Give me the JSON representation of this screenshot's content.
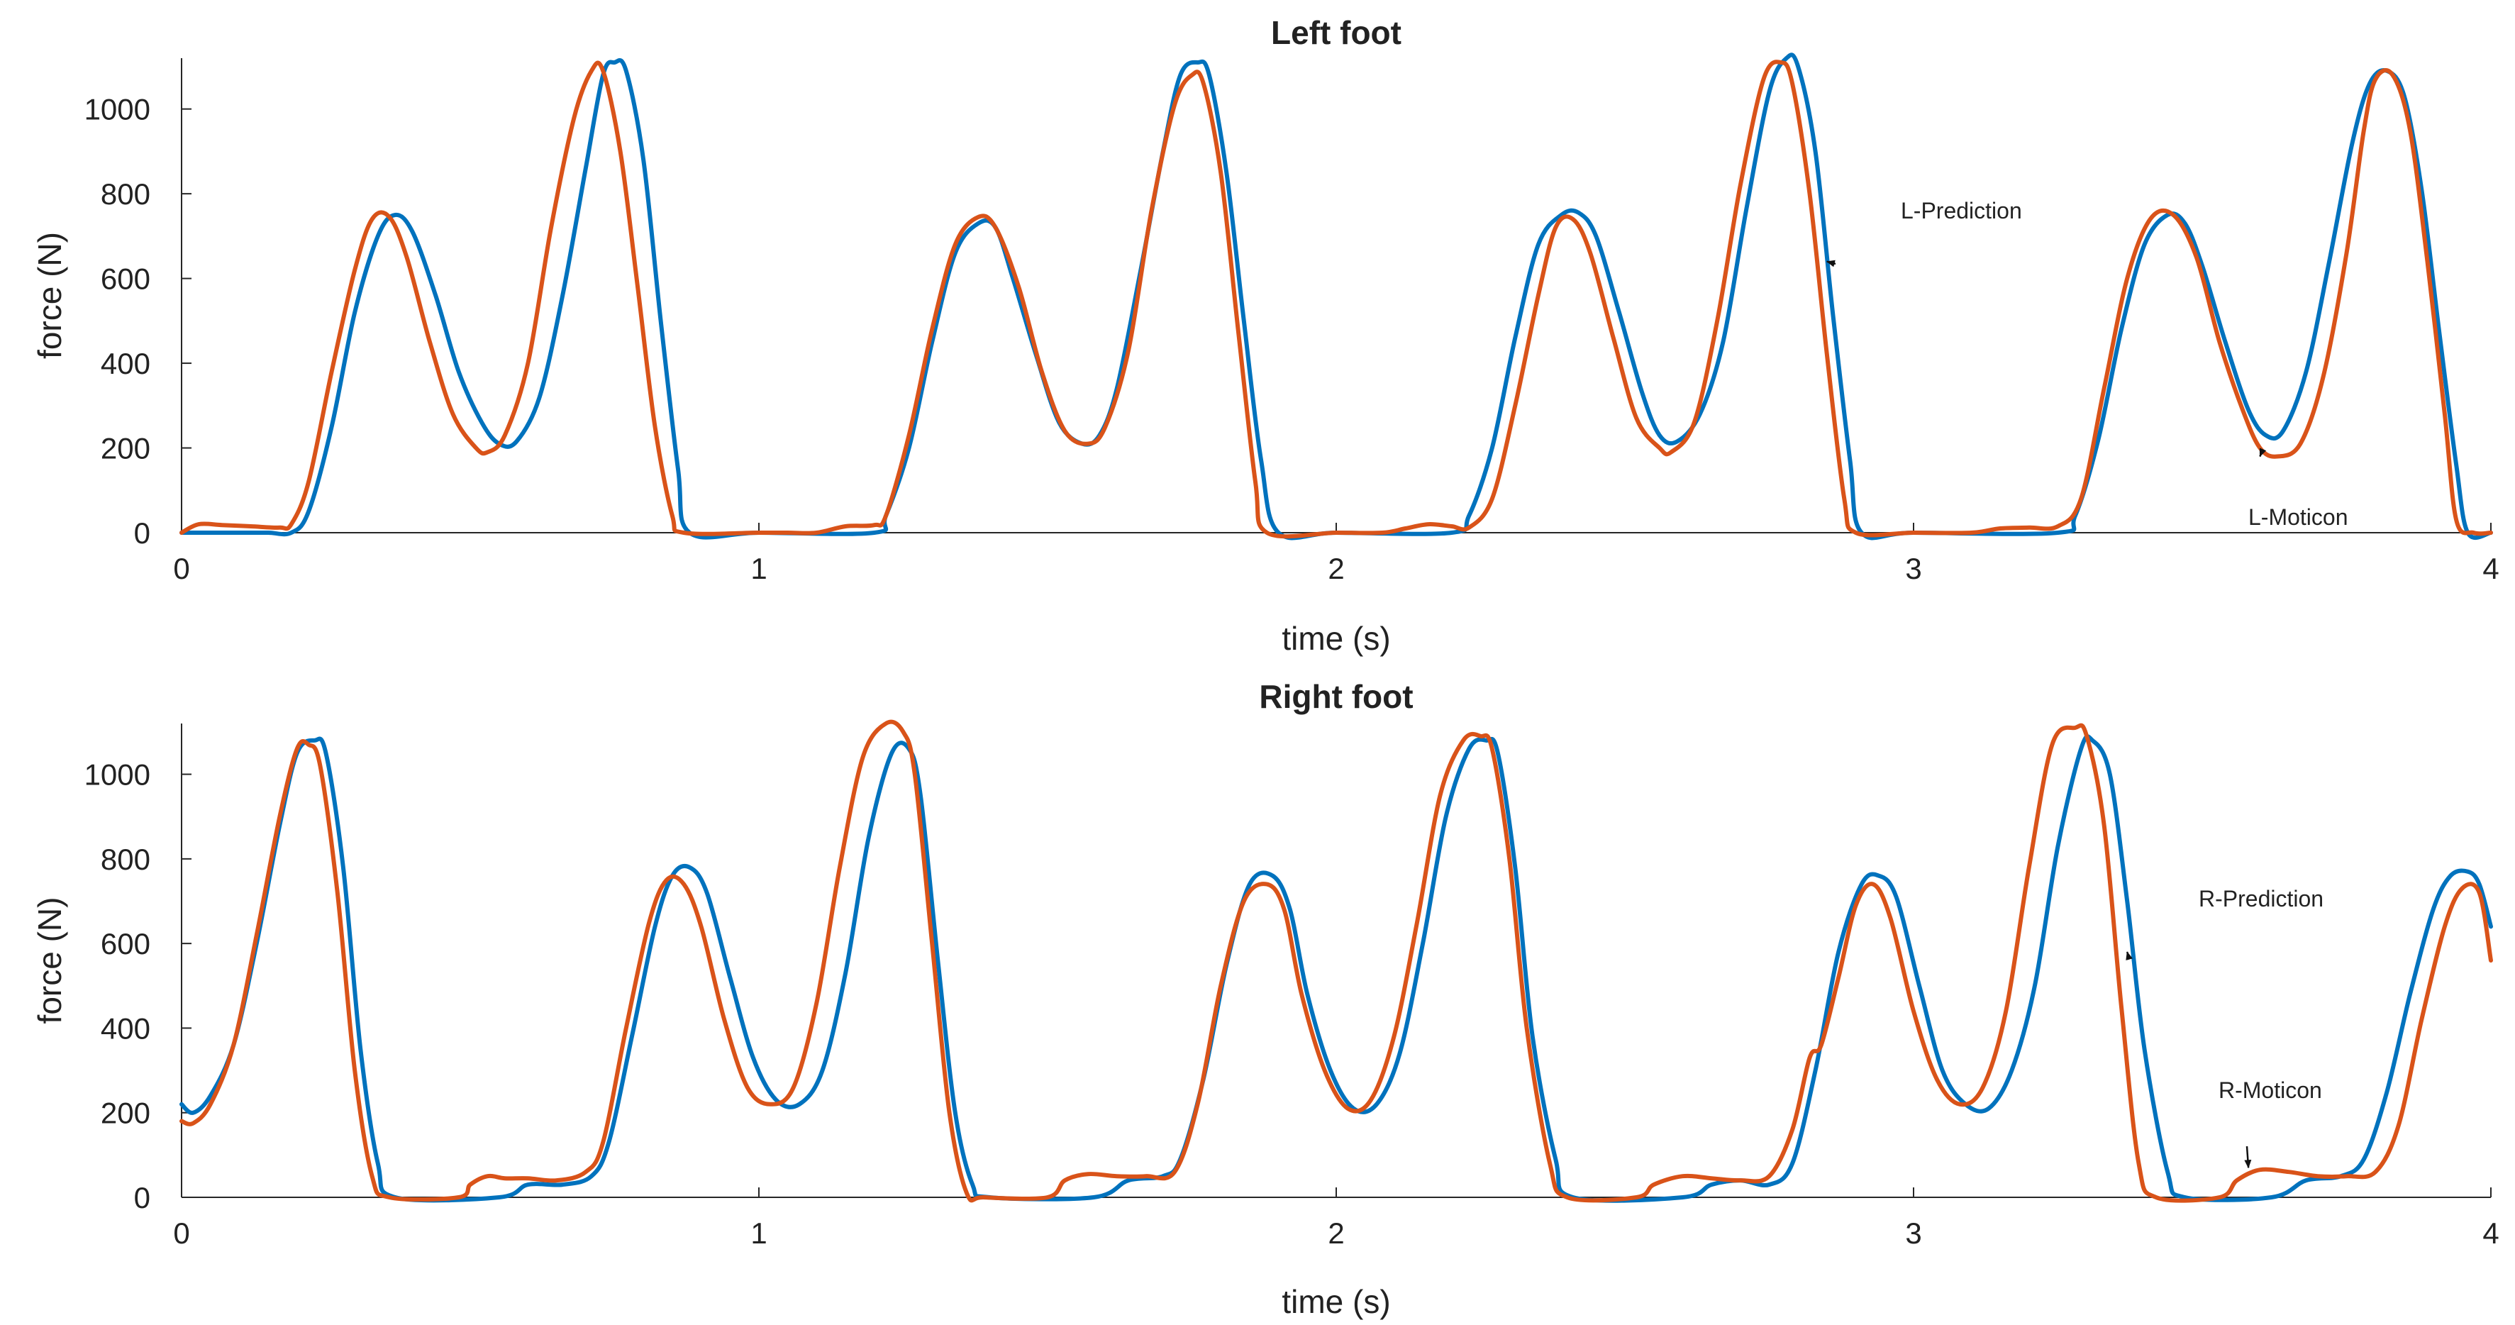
{
  "chart_data": [
    {
      "type": "line",
      "title": "Left foot",
      "xlabel": "time (s)",
      "ylabel": "force (N)",
      "xlim": [
        0,
        4
      ],
      "ylim": [
        0,
        1120
      ],
      "xticks": [
        "0",
        "1",
        "2",
        "3",
        "4"
      ],
      "yticks": [
        "0",
        "200",
        "400",
        "600",
        "800",
        "1000"
      ],
      "colors": {
        "prediction": "#0072BD",
        "moticon": "#D95319"
      },
      "annotations": [
        {
          "text": "L-Prediction",
          "series": "prediction",
          "x": 2.85,
          "y": 640
        },
        {
          "text": "L-Moticon",
          "series": "moticon",
          "x": 3.6,
          "y": 180
        }
      ],
      "series": [
        {
          "key": "prediction",
          "x": [
            0,
            0.05,
            0.1,
            0.15,
            0.19,
            0.22,
            0.26,
            0.3,
            0.34,
            0.37,
            0.4,
            0.44,
            0.48,
            0.52,
            0.55,
            0.58,
            0.62,
            0.66,
            0.7,
            0.73,
            0.75,
            0.77,
            0.8,
            0.83,
            0.86,
            0.88,
            1.0,
            1.2,
            1.22,
            1.26,
            1.3,
            1.34,
            1.38,
            1.41,
            1.44,
            1.48,
            1.52,
            1.56,
            1.59,
            1.62,
            1.66,
            1.7,
            1.73,
            1.76,
            1.78,
            1.81,
            1.84,
            1.87,
            1.9,
            2.0,
            2.2,
            2.23,
            2.27,
            2.31,
            2.35,
            2.39,
            2.42,
            2.45,
            2.49,
            2.53,
            2.56,
            2.59,
            2.63,
            2.67,
            2.71,
            2.75,
            2.78,
            2.8,
            2.83,
            2.86,
            2.89,
            2.91,
            3.0,
            3.25,
            3.28,
            3.32,
            3.36,
            3.4,
            3.44,
            3.47,
            3.5,
            3.54,
            3.58,
            3.61,
            3.64,
            3.68,
            3.72,
            3.76,
            3.79,
            3.82,
            3.85,
            3.88,
            3.91,
            3.94,
            3.96,
            4.0
          ],
          "y": [
            0,
            0,
            0,
            0,
            0,
            50,
            250,
            520,
            700,
            750,
            710,
            560,
            380,
            260,
            210,
            215,
            320,
            560,
            860,
            1080,
            1110,
            1090,
            880,
            500,
            150,
            0,
            0,
            0,
            40,
            200,
            450,
            660,
            730,
            720,
            600,
            420,
            260,
            210,
            230,
            340,
            610,
            900,
            1080,
            1110,
            1080,
            850,
            500,
            170,
            0,
            0,
            0,
            40,
            200,
            460,
            680,
            750,
            755,
            700,
            520,
            330,
            230,
            215,
            280,
            450,
            760,
            1040,
            1120,
            1100,
            900,
            520,
            170,
            0,
            0,
            0,
            40,
            220,
            480,
            680,
            750,
            730,
            630,
            450,
            290,
            230,
            240,
            380,
            640,
            920,
            1060,
            1090,
            1030,
            810,
            480,
            160,
            0,
            0
          ]
        },
        {
          "key": "moticon",
          "x": [
            0,
            0.03,
            0.07,
            0.12,
            0.17,
            0.19,
            0.22,
            0.26,
            0.3,
            0.33,
            0.36,
            0.39,
            0.43,
            0.47,
            0.51,
            0.53,
            0.56,
            0.6,
            0.64,
            0.68,
            0.71,
            0.73,
            0.76,
            0.79,
            0.82,
            0.85,
            0.87,
            1.0,
            1.05,
            1.1,
            1.15,
            1.2,
            1.22,
            1.26,
            1.3,
            1.34,
            1.38,
            1.41,
            1.45,
            1.49,
            1.53,
            1.57,
            1.6,
            1.64,
            1.68,
            1.72,
            1.75,
            1.77,
            1.8,
            1.83,
            1.86,
            1.88,
            2.0,
            2.08,
            2.12,
            2.16,
            2.2,
            2.23,
            2.27,
            2.31,
            2.35,
            2.38,
            2.41,
            2.44,
            2.48,
            2.52,
            2.56,
            2.58,
            2.62,
            2.66,
            2.7,
            2.74,
            2.77,
            2.79,
            2.82,
            2.85,
            2.88,
            2.9,
            3.0,
            3.1,
            3.15,
            3.2,
            3.25,
            3.29,
            3.33,
            3.37,
            3.41,
            3.45,
            3.49,
            3.53,
            3.57,
            3.6,
            3.63,
            3.67,
            3.71,
            3.75,
            3.78,
            3.8,
            3.83,
            3.86,
            3.89,
            3.92,
            3.94,
            3.97,
            4.0
          ],
          "y": [
            0,
            20,
            18,
            15,
            12,
            20,
            120,
            380,
            620,
            740,
            745,
            650,
            450,
            280,
            200,
            190,
            230,
            400,
            720,
            980,
            1090,
            1090,
            900,
            580,
            250,
            40,
            0,
            0,
            0,
            0,
            15,
            18,
            40,
            230,
            480,
            680,
            745,
            720,
            580,
            380,
            240,
            210,
            250,
            430,
            760,
            1010,
            1080,
            1060,
            850,
            480,
            120,
            0,
            0,
            0,
            10,
            20,
            15,
            12,
            80,
            300,
            560,
            720,
            740,
            660,
            460,
            270,
            200,
            190,
            260,
            500,
            820,
            1070,
            1110,
            1060,
            800,
            420,
            80,
            0,
            0,
            0,
            10,
            12,
            15,
            80,
            340,
            600,
            740,
            750,
            650,
            450,
            290,
            200,
            180,
            210,
            370,
            660,
            950,
            1070,
            1080,
            950,
            640,
            280,
            30,
            0,
            0
          ]
        }
      ]
    },
    {
      "type": "line",
      "title": "Right foot",
      "xlabel": "time (s)",
      "ylabel": "force (N)",
      "xlim": [
        0,
        4
      ],
      "ylim": [
        0,
        1120
      ],
      "xticks": [
        "0",
        "1",
        "2",
        "3",
        "4"
      ],
      "yticks": [
        "0",
        "200",
        "400",
        "600",
        "800",
        "1000"
      ],
      "colors": {
        "prediction": "#0072BD",
        "moticon": "#D95319"
      },
      "annotations": [
        {
          "text": "R-Prediction",
          "series": "prediction",
          "x": 3.37,
          "y": 580
        },
        {
          "text": "R-Moticon",
          "series": "moticon",
          "x": 3.58,
          "y": 70
        }
      ],
      "series": [
        {
          "key": "prediction",
          "x": [
            0,
            0.02,
            0.05,
            0.09,
            0.13,
            0.17,
            0.2,
            0.23,
            0.25,
            0.28,
            0.31,
            0.34,
            0.37,
            0.55,
            0.6,
            0.66,
            0.71,
            0.74,
            0.78,
            0.82,
            0.85,
            0.88,
            0.91,
            0.95,
            0.99,
            1.03,
            1.07,
            1.11,
            1.15,
            1.19,
            1.23,
            1.26,
            1.28,
            1.31,
            1.34,
            1.37,
            1.4,
            1.58,
            1.64,
            1.7,
            1.73,
            1.77,
            1.81,
            1.85,
            1.89,
            1.92,
            1.95,
            1.99,
            2.03,
            2.07,
            2.11,
            2.15,
            2.19,
            2.23,
            2.26,
            2.28,
            2.31,
            2.34,
            2.38,
            2.41,
            2.6,
            2.65,
            2.7,
            2.75,
            2.79,
            2.83,
            2.87,
            2.91,
            2.94,
            2.97,
            3.01,
            3.05,
            3.09,
            3.13,
            3.17,
            3.21,
            3.25,
            3.29,
            3.31,
            3.34,
            3.37,
            3.4,
            3.44,
            3.47,
            3.62,
            3.68,
            3.74,
            3.78,
            3.82,
            3.86,
            3.9,
            3.93,
            3.96,
            3.98,
            4.0
          ],
          "y": [
            220,
            200,
            240,
            360,
            600,
            880,
            1050,
            1080,
            1050,
            780,
            350,
            80,
            0,
            0,
            30,
            30,
            50,
            130,
            380,
            640,
            760,
            780,
            720,
            520,
            330,
            230,
            220,
            300,
            530,
            850,
            1050,
            1060,
            950,
            560,
            200,
            30,
            0,
            0,
            40,
            50,
            90,
            280,
            550,
            740,
            760,
            680,
            480,
            300,
            210,
            220,
            340,
            600,
            900,
            1060,
            1080,
            1050,
            780,
            380,
            90,
            0,
            0,
            30,
            40,
            30,
            80,
            300,
            580,
            740,
            760,
            710,
            500,
            300,
            220,
            210,
            300,
            500,
            830,
            1060,
            1080,
            1000,
            700,
            350,
            60,
            0,
            0,
            40,
            50,
            90,
            250,
            480,
            680,
            760,
            770,
            740,
            640
          ]
        },
        {
          "key": "moticon",
          "x": [
            0,
            0.02,
            0.05,
            0.09,
            0.13,
            0.17,
            0.2,
            0.22,
            0.24,
            0.27,
            0.3,
            0.33,
            0.36,
            0.48,
            0.5,
            0.53,
            0.56,
            0.6,
            0.65,
            0.7,
            0.73,
            0.77,
            0.81,
            0.84,
            0.87,
            0.9,
            0.94,
            0.98,
            1.02,
            1.06,
            1.1,
            1.14,
            1.18,
            1.22,
            1.25,
            1.27,
            1.3,
            1.33,
            1.36,
            1.39,
            1.5,
            1.53,
            1.57,
            1.62,
            1.67,
            1.72,
            1.76,
            1.8,
            1.84,
            1.88,
            1.91,
            1.94,
            1.98,
            2.02,
            2.06,
            2.1,
            2.14,
            2.18,
            2.22,
            2.25,
            2.27,
            2.3,
            2.33,
            2.37,
            2.4,
            2.52,
            2.55,
            2.6,
            2.65,
            2.7,
            2.75,
            2.79,
            2.82,
            2.84,
            2.87,
            2.9,
            2.93,
            2.96,
            3.0,
            3.04,
            3.08,
            3.12,
            3.16,
            3.2,
            3.24,
            3.28,
            3.3,
            3.33,
            3.36,
            3.39,
            3.42,
            3.53,
            3.56,
            3.6,
            3.65,
            3.7,
            3.75,
            3.8,
            3.84,
            3.88,
            3.92,
            3.95,
            3.98,
            4.0
          ],
          "y": [
            180,
            175,
            220,
            360,
            620,
            900,
            1060,
            1070,
            1020,
            720,
            300,
            50,
            0,
            0,
            30,
            50,
            45,
            45,
            40,
            60,
            130,
            400,
            650,
            750,
            740,
            640,
            420,
            260,
            220,
            260,
            460,
            780,
            1040,
            1120,
            1100,
            1000,
            600,
            200,
            10,
            0,
            0,
            40,
            55,
            50,
            50,
            60,
            220,
            500,
            700,
            740,
            680,
            480,
            300,
            210,
            230,
            380,
            650,
            950,
            1080,
            1090,
            1060,
            800,
            400,
            80,
            0,
            0,
            30,
            50,
            45,
            40,
            50,
            160,
            330,
            360,
            520,
            690,
            740,
            660,
            440,
            280,
            220,
            260,
            440,
            780,
            1070,
            1110,
            1090,
            880,
            450,
            80,
            0,
            0,
            40,
            65,
            60,
            50,
            50,
            60,
            170,
            420,
            640,
            730,
            720,
            560
          ]
        }
      ]
    }
  ]
}
